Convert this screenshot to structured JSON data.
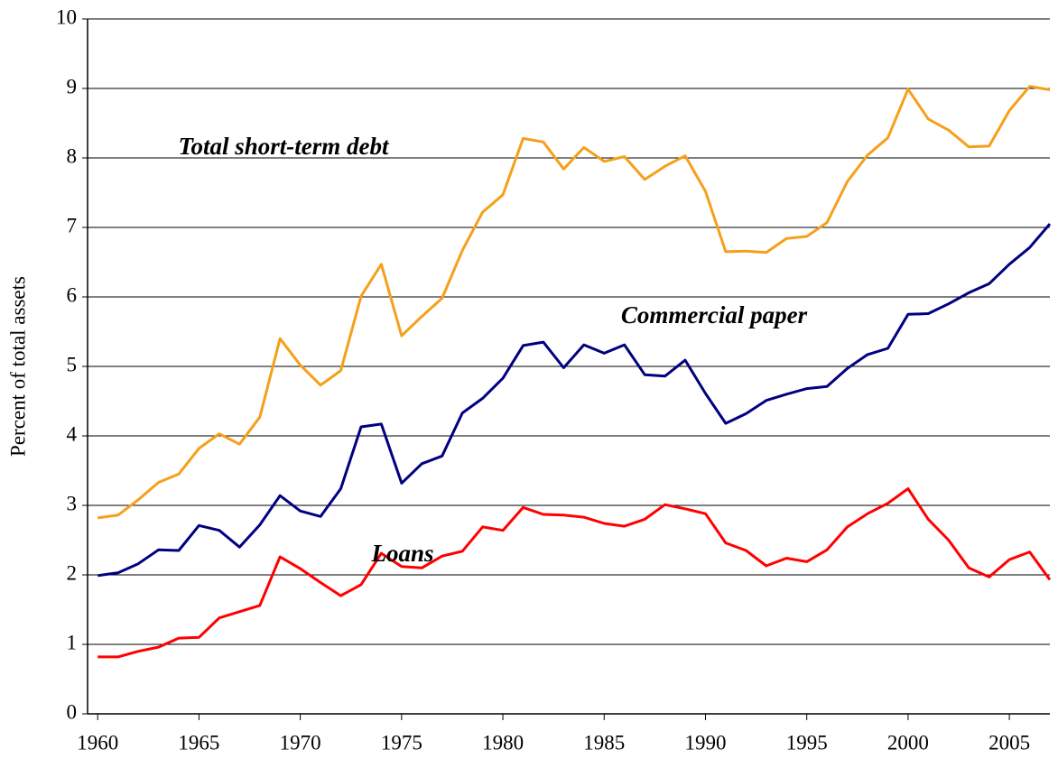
{
  "chart_data": {
    "type": "line",
    "y_label": "Percent of total assets",
    "x": [
      1960,
      1961,
      1962,
      1963,
      1964,
      1965,
      1966,
      1967,
      1968,
      1969,
      1970,
      1971,
      1972,
      1973,
      1974,
      1975,
      1976,
      1977,
      1978,
      1979,
      1980,
      1981,
      1982,
      1983,
      1984,
      1985,
      1986,
      1987,
      1988,
      1989,
      1990,
      1991,
      1992,
      1993,
      1994,
      1995,
      1996,
      1997,
      1998,
      1999,
      2000,
      2001,
      2002,
      2003,
      2004,
      2005,
      2006,
      2007
    ],
    "series": [
      {
        "name": "Total short-term debt",
        "color": "#f5a01a",
        "values": [
          2.82,
          2.86,
          3.08,
          3.33,
          3.45,
          3.82,
          4.03,
          3.88,
          4.27,
          5.4,
          5.02,
          4.73,
          4.94,
          6.01,
          6.47,
          5.44,
          5.72,
          5.98,
          6.67,
          7.22,
          7.47,
          8.28,
          8.23,
          7.84,
          8.15,
          7.95,
          8.02,
          7.69,
          7.88,
          8.03,
          7.52,
          6.65,
          6.66,
          6.64,
          6.84,
          6.87,
          7.07,
          7.66,
          8.04,
          8.29,
          8.99,
          8.56,
          8.4,
          8.16,
          8.17,
          8.68,
          9.03,
          8.98
        ]
      },
      {
        "name": "Commercial paper",
        "color": "#000080",
        "values": [
          1.99,
          2.03,
          2.16,
          2.36,
          2.35,
          2.71,
          2.64,
          2.4,
          2.72,
          3.14,
          2.92,
          2.84,
          3.24,
          4.13,
          4.17,
          3.32,
          3.6,
          3.71,
          4.33,
          4.54,
          4.83,
          5.3,
          5.35,
          4.98,
          5.31,
          5.19,
          5.31,
          4.88,
          4.86,
          5.09,
          4.61,
          4.18,
          4.32,
          4.51,
          4.6,
          4.68,
          4.71,
          4.97,
          5.17,
          5.26,
          5.75,
          5.76,
          5.9,
          6.06,
          6.19,
          6.47,
          6.71,
          7.05
        ]
      },
      {
        "name": "Loans",
        "color": "#ff0000",
        "values": [
          0.82,
          0.82,
          0.9,
          0.96,
          1.09,
          1.1,
          1.38,
          1.47,
          1.56,
          2.26,
          2.09,
          1.89,
          1.7,
          1.86,
          2.31,
          2.12,
          2.1,
          2.27,
          2.34,
          2.69,
          2.64,
          2.97,
          2.87,
          2.86,
          2.83,
          2.74,
          2.7,
          2.8,
          3.01,
          2.95,
          2.88,
          2.46,
          2.35,
          2.13,
          2.24,
          2.19,
          2.36,
          2.69,
          2.88,
          3.03,
          3.24,
          2.8,
          2.5,
          2.1,
          1.97,
          2.22,
          2.33,
          1.93
        ]
      }
    ],
    "xlim": [
      1959.5,
      2007
    ],
    "xticks": [
      1960,
      1965,
      1970,
      1975,
      1980,
      1985,
      1990,
      1995,
      2000,
      2005
    ],
    "ylim": [
      0,
      10
    ],
    "yticks": [
      0,
      1,
      2,
      3,
      4,
      5,
      6,
      7,
      8,
      9,
      10
    ],
    "grid": true
  }
}
